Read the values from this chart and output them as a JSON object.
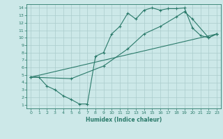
{
  "xlabel": "Humidex (Indice chaleur)",
  "bg_color": "#cce8e8",
  "grid_color": "#aacccc",
  "line_color": "#2a7a6a",
  "xlim": [
    -0.5,
    23.5
  ],
  "ylim": [
    0.5,
    14.5
  ],
  "xticks": [
    0,
    1,
    2,
    3,
    4,
    5,
    6,
    7,
    8,
    9,
    10,
    11,
    12,
    13,
    14,
    15,
    16,
    17,
    18,
    19,
    20,
    21,
    22,
    23
  ],
  "yticks": [
    1,
    2,
    3,
    4,
    5,
    6,
    7,
    8,
    9,
    10,
    11,
    12,
    13,
    14
  ],
  "line1_x": [
    0,
    1,
    2,
    3,
    4,
    5,
    6,
    7,
    8,
    9,
    10,
    11,
    12,
    13,
    14,
    15,
    16,
    17,
    18,
    19,
    20,
    21,
    22,
    23
  ],
  "line1_y": [
    4.7,
    4.7,
    3.5,
    3.0,
    2.2,
    1.7,
    1.1,
    1.1,
    7.5,
    8.0,
    10.5,
    11.5,
    13.3,
    12.5,
    13.7,
    14.0,
    13.7,
    13.9,
    13.9,
    14.0,
    11.3,
    10.3,
    10.0,
    10.5
  ],
  "line2_x": [
    0,
    23
  ],
  "line2_y": [
    4.7,
    10.5
  ],
  "line3_x": [
    0,
    5,
    9,
    12,
    14,
    16,
    18,
    19,
    20,
    22,
    23
  ],
  "line3_y": [
    4.7,
    4.5,
    6.2,
    8.5,
    10.5,
    11.5,
    12.8,
    13.5,
    12.5,
    10.0,
    10.5
  ]
}
